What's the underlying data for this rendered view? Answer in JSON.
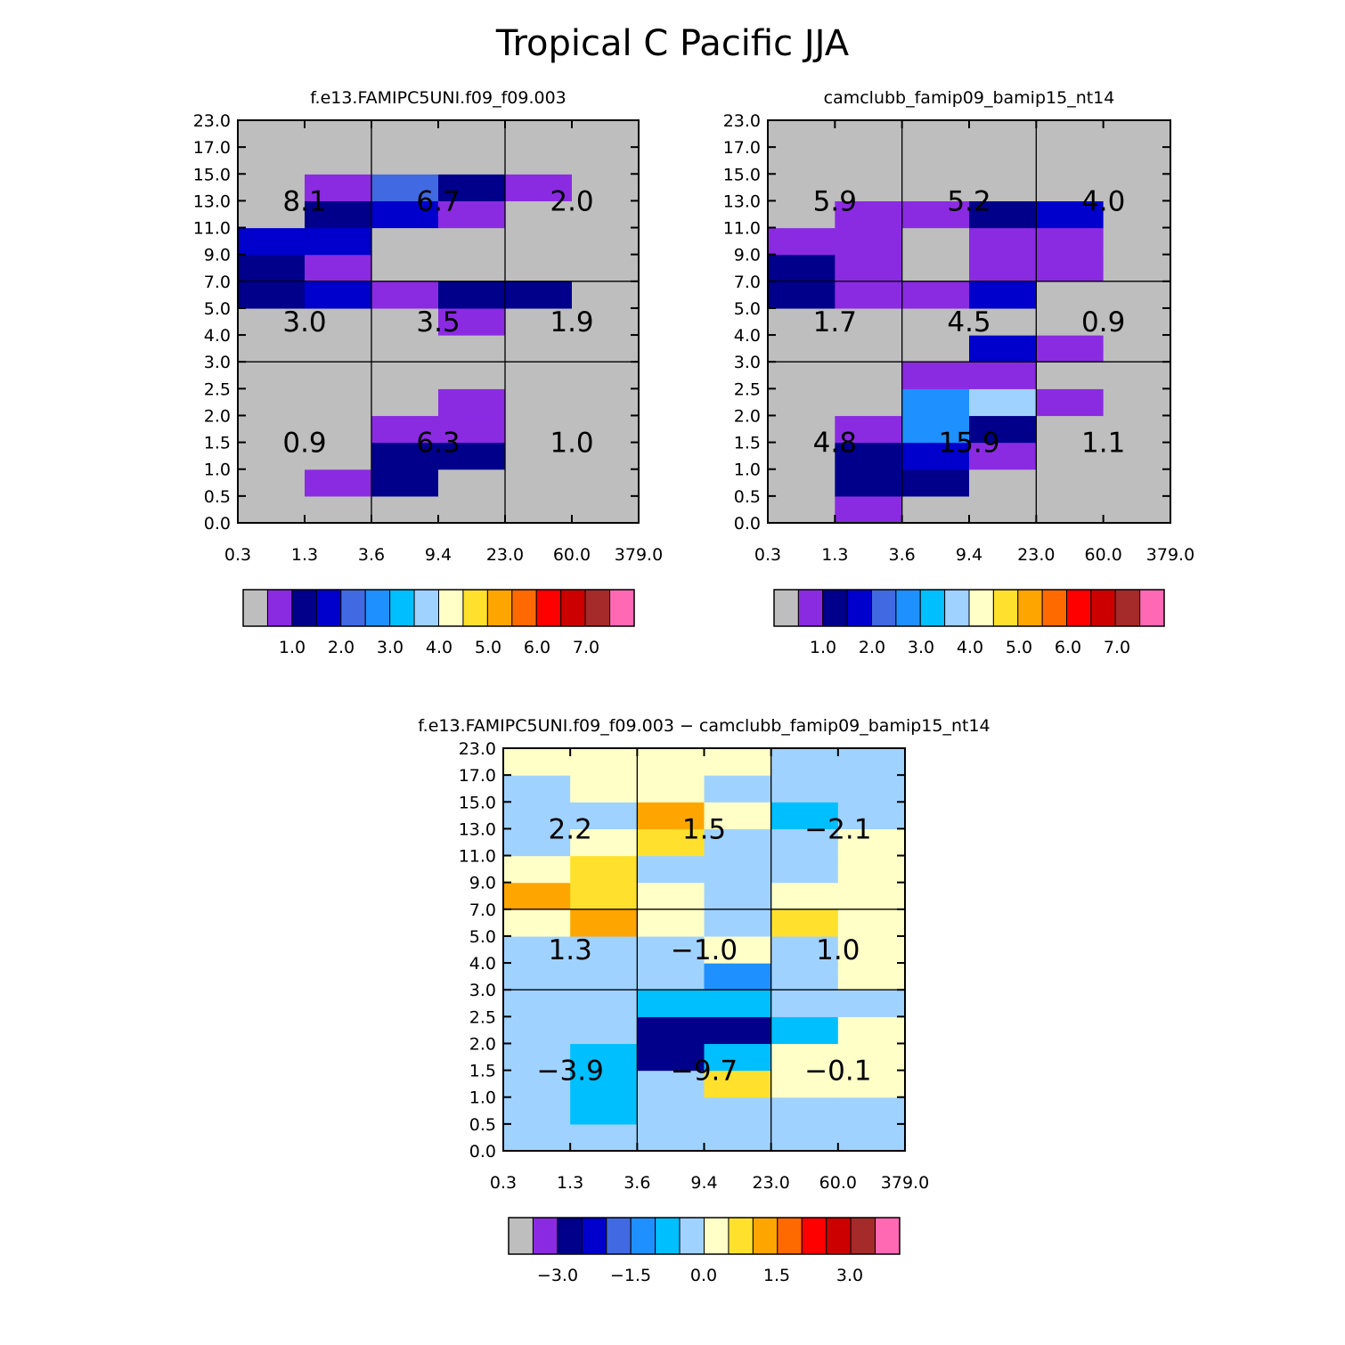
{
  "figure_title": "Tropical C Pacific JJA",
  "colors": {
    "missing": "#bebebe",
    "palette": [
      "#bebebe",
      "#8a2be2",
      "#00008b",
      "#0000cd",
      "#4169e1",
      "#1e90ff",
      "#00bfff",
      "#a0d2ff",
      "#ffffc8",
      "#ffe12d",
      "#ffa500",
      "#ff6a00",
      "#ff0000",
      "#cd0000",
      "#a52a2a",
      "#ff69b4"
    ]
  },
  "chart_data": [
    {
      "id": "panel-a",
      "type": "heatmap",
      "title": "f.e13.FAMIPC5UNI.f09_f09.003",
      "x_ticks": [
        "0.3",
        "1.3",
        "3.6",
        "9.4",
        "23.0",
        "60.0",
        "379.0"
      ],
      "y_ticks": [
        "0.0",
        "0.5",
        "1.0",
        "1.5",
        "2.0",
        "2.5",
        "3.0",
        "4.0",
        "5.0",
        "7.0",
        "9.0",
        "11.0",
        "13.0",
        "15.0",
        "17.0",
        "23.0"
      ],
      "cells_bottom_to_top": [
        [
          0,
          0,
          0,
          0,
          0,
          0
        ],
        [
          0,
          1,
          2,
          0,
          0,
          0
        ],
        [
          0,
          0,
          2,
          2,
          0,
          0
        ],
        [
          0,
          0,
          1,
          1,
          0,
          0
        ],
        [
          0,
          0,
          0,
          1,
          0,
          0
        ],
        [
          0,
          0,
          0,
          0,
          0,
          0
        ],
        [
          0,
          0,
          0,
          0,
          0,
          0
        ],
        [
          0,
          0,
          0,
          1,
          0,
          0
        ],
        [
          2,
          3,
          1,
          2,
          2,
          0
        ],
        [
          2,
          1,
          0,
          0,
          0,
          0
        ],
        [
          3,
          3,
          0,
          0,
          0,
          0
        ],
        [
          0,
          2,
          3,
          1,
          0,
          0
        ],
        [
          0,
          1,
          4,
          2,
          1,
          0
        ],
        [
          0,
          0,
          0,
          0,
          0,
          0
        ],
        [
          0,
          0,
          0,
          0,
          0,
          0
        ]
      ],
      "region_labels": [
        {
          "col": 0,
          "row": 0,
          "text": "8.1"
        },
        {
          "col": 1,
          "row": 0,
          "text": "6.7"
        },
        {
          "col": 2,
          "row": 0,
          "text": "2.0"
        },
        {
          "col": 0,
          "row": 1,
          "text": "3.0"
        },
        {
          "col": 1,
          "row": 1,
          "text": "3.5"
        },
        {
          "col": 2,
          "row": 1,
          "text": "1.9"
        },
        {
          "col": 0,
          "row": 2,
          "text": "0.9"
        },
        {
          "col": 1,
          "row": 2,
          "text": "6.3"
        },
        {
          "col": 2,
          "row": 2,
          "text": "1.0"
        }
      ],
      "colorbar_labels": [
        "1.0",
        "2.0",
        "3.0",
        "4.0",
        "5.0",
        "6.0",
        "7.0"
      ]
    },
    {
      "id": "panel-b",
      "type": "heatmap",
      "title": "camclubb_famip09_bamip15_nt14",
      "x_ticks": [
        "0.3",
        "1.3",
        "3.6",
        "9.4",
        "23.0",
        "60.0",
        "379.0"
      ],
      "y_ticks": [
        "0.0",
        "0.5",
        "1.0",
        "1.5",
        "2.0",
        "2.5",
        "3.0",
        "4.0",
        "5.0",
        "7.0",
        "9.0",
        "11.0",
        "13.0",
        "15.0",
        "17.0",
        "23.0"
      ],
      "cells_bottom_to_top": [
        [
          0,
          1,
          0,
          0,
          0,
          0
        ],
        [
          0,
          2,
          2,
          0,
          0,
          0
        ],
        [
          0,
          2,
          3,
          1,
          0,
          0
        ],
        [
          0,
          1,
          5,
          2,
          0,
          0
        ],
        [
          0,
          0,
          5,
          7,
          1,
          0
        ],
        [
          0,
          0,
          1,
          1,
          0,
          0
        ],
        [
          0,
          0,
          0,
          3,
          1,
          0
        ],
        [
          0,
          0,
          0,
          0,
          0,
          0
        ],
        [
          2,
          1,
          1,
          3,
          0,
          0
        ],
        [
          2,
          1,
          0,
          1,
          1,
          0
        ],
        [
          1,
          1,
          0,
          1,
          1,
          0
        ],
        [
          0,
          1,
          1,
          2,
          3,
          0
        ],
        [
          0,
          0,
          0,
          0,
          0,
          0
        ],
        [
          0,
          0,
          0,
          0,
          0,
          0
        ],
        [
          0,
          0,
          0,
          0,
          0,
          0
        ]
      ],
      "region_labels": [
        {
          "col": 0,
          "row": 0,
          "text": "5.9"
        },
        {
          "col": 1,
          "row": 0,
          "text": "5.2"
        },
        {
          "col": 2,
          "row": 0,
          "text": "4.0"
        },
        {
          "col": 0,
          "row": 1,
          "text": "1.7"
        },
        {
          "col": 1,
          "row": 1,
          "text": "4.5"
        },
        {
          "col": 2,
          "row": 1,
          "text": "0.9"
        },
        {
          "col": 0,
          "row": 2,
          "text": "4.8"
        },
        {
          "col": 1,
          "row": 2,
          "text": "15.9"
        },
        {
          "col": 2,
          "row": 2,
          "text": "1.1"
        }
      ],
      "colorbar_labels": [
        "1.0",
        "2.0",
        "3.0",
        "4.0",
        "5.0",
        "6.0",
        "7.0"
      ]
    },
    {
      "id": "panel-diff",
      "type": "heatmap",
      "title": "f.e13.FAMIPC5UNI.f09_f09.003 − camclubb_famip09_bamip15_nt14",
      "x_ticks": [
        "0.3",
        "1.3",
        "3.6",
        "9.4",
        "23.0",
        "60.0",
        "379.0"
      ],
      "y_ticks": [
        "0.0",
        "0.5",
        "1.0",
        "1.5",
        "2.0",
        "2.5",
        "3.0",
        "4.0",
        "5.0",
        "7.0",
        "9.0",
        "11.0",
        "13.0",
        "15.0",
        "17.0",
        "23.0"
      ],
      "cells_bottom_to_top": [
        [
          7,
          7,
          7,
          7,
          7,
          7
        ],
        [
          7,
          6,
          7,
          7,
          7,
          7
        ],
        [
          7,
          6,
          7,
          9,
          8,
          8
        ],
        [
          7,
          6,
          2,
          6,
          8,
          8
        ],
        [
          7,
          7,
          2,
          2,
          6,
          8
        ],
        [
          7,
          7,
          6,
          6,
          7,
          7
        ],
        [
          7,
          7,
          7,
          5,
          7,
          8
        ],
        [
          7,
          7,
          7,
          8,
          7,
          8
        ],
        [
          8,
          10,
          8,
          7,
          9,
          8
        ],
        [
          10,
          9,
          8,
          7,
          8,
          8
        ],
        [
          8,
          9,
          7,
          7,
          7,
          8
        ],
        [
          7,
          8,
          9,
          7,
          7,
          8
        ],
        [
          7,
          7,
          10,
          8,
          6,
          7
        ],
        [
          7,
          8,
          8,
          7,
          7,
          7
        ],
        [
          8,
          8,
          8,
          8,
          7,
          7
        ]
      ],
      "region_labels": [
        {
          "col": 0,
          "row": 0,
          "text": "2.2"
        },
        {
          "col": 1,
          "row": 0,
          "text": "1.5"
        },
        {
          "col": 2,
          "row": 0,
          "text": "−2.1"
        },
        {
          "col": 0,
          "row": 1,
          "text": "1.3"
        },
        {
          "col": 1,
          "row": 1,
          "text": "−1.0"
        },
        {
          "col": 2,
          "row": 1,
          "text": "1.0"
        },
        {
          "col": 0,
          "row": 2,
          "text": "−3.9"
        },
        {
          "col": 1,
          "row": 2,
          "text": "−9.7"
        },
        {
          "col": 2,
          "row": 2,
          "text": "−0.1"
        }
      ],
      "colorbar_labels": [
        "−3.0",
        "−1.5",
        "0.0",
        "1.5",
        "3.0"
      ]
    }
  ]
}
